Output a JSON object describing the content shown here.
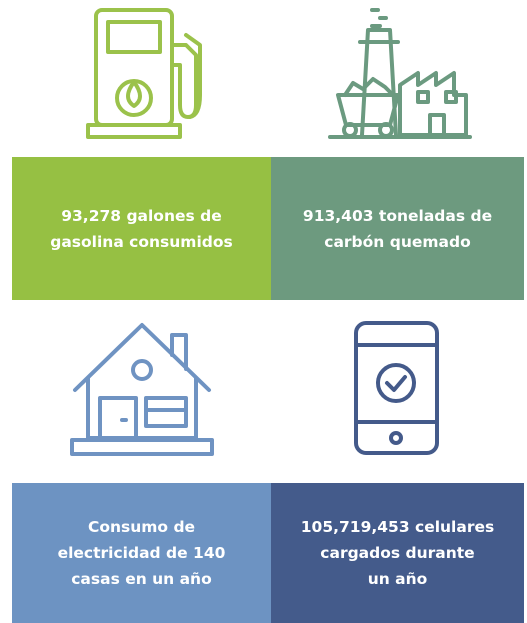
{
  "cards": [
    {
      "lines": [
        "93,278 galones de",
        "gasolina consumidos"
      ]
    },
    {
      "lines": [
        "913,403 toneladas de",
        "carbón quemado"
      ]
    },
    {
      "lines": [
        "Consumo de",
        "electricidad de 140",
        "casas en un año"
      ]
    },
    {
      "lines": [
        "105,719,453 celulares",
        "cargados durante",
        "un año"
      ]
    }
  ]
}
